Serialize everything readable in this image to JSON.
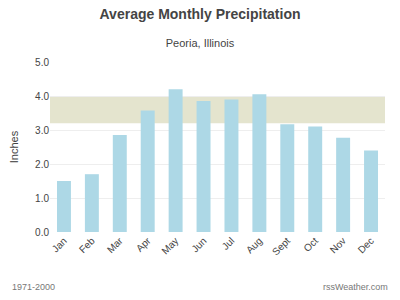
{
  "chart_data": {
    "type": "bar",
    "title": "Average Monthly Precipitation",
    "subtitle": "Peoria, Illinois",
    "ylabel": "Inches",
    "categories": [
      "Jan",
      "Feb",
      "Mar",
      "Apr",
      "May",
      "Jun",
      "Jul",
      "Aug",
      "Sept",
      "Oct",
      "Nov",
      "Dec"
    ],
    "values": [
      1.5,
      1.7,
      2.85,
      3.57,
      4.2,
      3.85,
      3.9,
      4.05,
      3.17,
      3.1,
      2.77,
      2.4
    ],
    "color": "#ADD8E6",
    "ylim": [
      0.0,
      5.0
    ],
    "yticks": [
      {
        "value": 0.0,
        "label": "0.0"
      },
      {
        "value": 1.0,
        "label": "1.0"
      },
      {
        "value": 2.0,
        "label": "2.0"
      },
      {
        "value": 3.0,
        "label": "3.0"
      },
      {
        "value": 4.0,
        "label": "4.0"
      },
      {
        "value": 5.0,
        "label": "5.0"
      }
    ],
    "grid": true,
    "shaded_band": {
      "ylim": [
        3.2,
        4.0
      ],
      "color": "#e4e4ce"
    },
    "annotations": [
      "1971-2000",
      "rssWeather.com"
    ]
  }
}
